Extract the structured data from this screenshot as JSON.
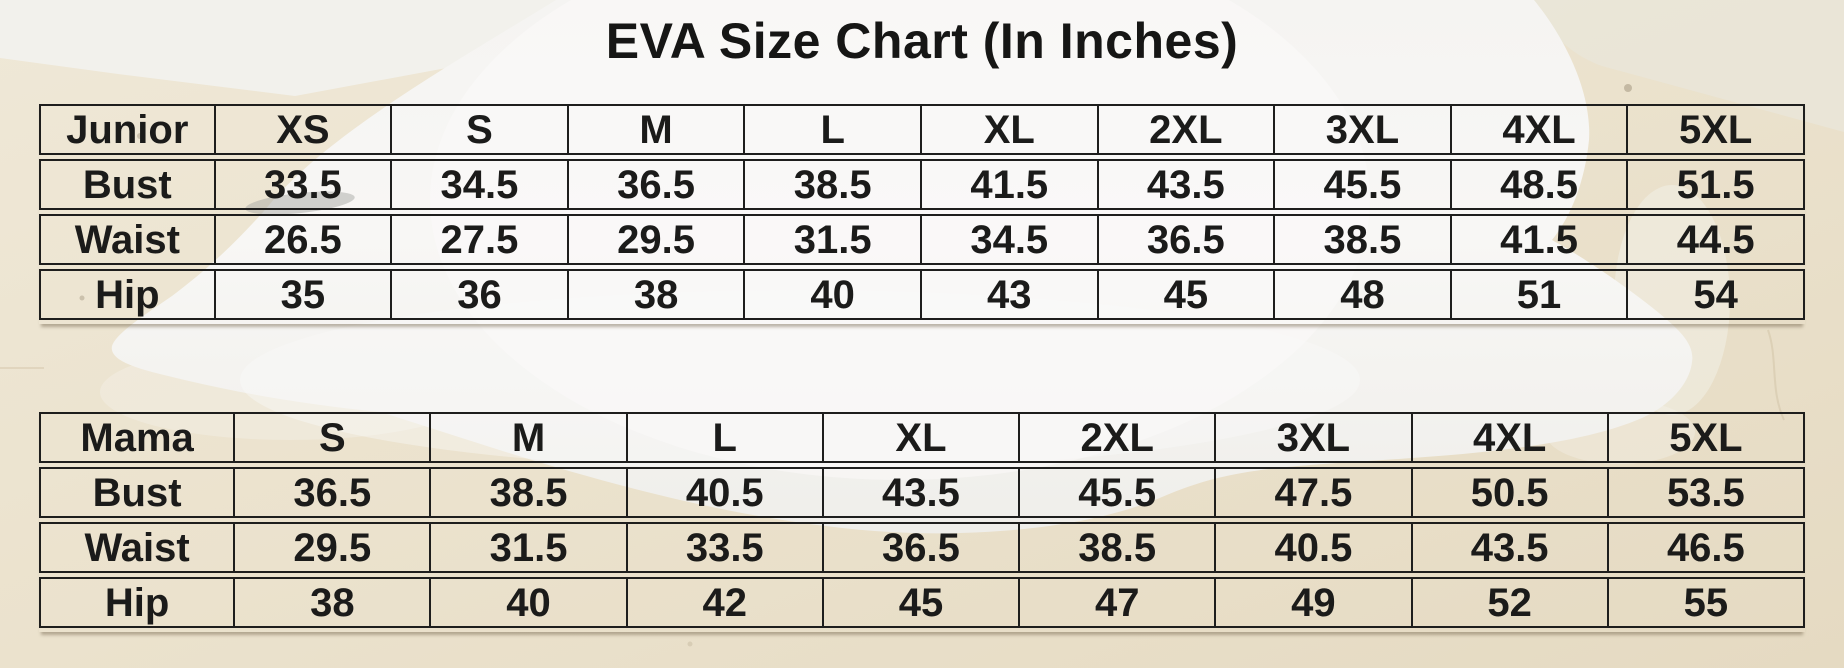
{
  "title": "EVA Size Chart (In Inches)",
  "tables": [
    {
      "id": "junior",
      "header_label": "Junior",
      "sizes": [
        "XS",
        "S",
        "M",
        "L",
        "XL",
        "2XL",
        "3XL",
        "4XL",
        "5XL"
      ],
      "rows": [
        {
          "label": "Bust",
          "values": [
            "33.5",
            "34.5",
            "36.5",
            "38.5",
            "41.5",
            "43.5",
            "45.5",
            "48.5",
            "51.5"
          ]
        },
        {
          "label": "Waist",
          "values": [
            "26.5",
            "27.5",
            "29.5",
            "31.5",
            "34.5",
            "36.5",
            "38.5",
            "41.5",
            "44.5"
          ]
        },
        {
          "label": "Hip",
          "values": [
            "35",
            "36",
            "38",
            "40",
            "43",
            "45",
            "48",
            "51",
            "54"
          ]
        }
      ]
    },
    {
      "id": "mama",
      "header_label": "Mama",
      "sizes": [
        "S",
        "M",
        "L",
        "XL",
        "2XL",
        "3XL",
        "4XL",
        "5XL"
      ],
      "rows": [
        {
          "label": "Bust",
          "values": [
            "36.5",
            "38.5",
            "40.5",
            "43.5",
            "45.5",
            "47.5",
            "50.5",
            "53.5"
          ]
        },
        {
          "label": "Waist",
          "values": [
            "29.5",
            "31.5",
            "33.5",
            "36.5",
            "38.5",
            "40.5",
            "43.5",
            "46.5"
          ]
        },
        {
          "label": "Hip",
          "values": [
            "38",
            "40",
            "42",
            "45",
            "47",
            "49",
            "52",
            "55"
          ]
        }
      ]
    }
  ],
  "colors": {
    "floor_beige": "#ebe2cd",
    "floor_beige_dark": "#e6dbc4",
    "dress_white": "#f7f6f4",
    "wall_light": "#f2f1ec",
    "table_border": "#1e1e1d",
    "text": "#1b1b1a"
  }
}
